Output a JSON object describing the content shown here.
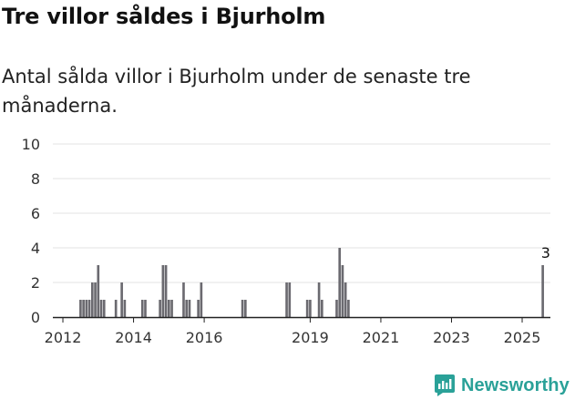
{
  "title": "Tre villor såldes i Bjurholm",
  "subtitle": "Antal sålda villor i Bjurholm under de senaste tre månaderna.",
  "brand": {
    "name": "Newsworthy",
    "color": "#2aa198"
  },
  "colors": {
    "bar": "#6b6a70",
    "highlight": "#2aa198",
    "grid": "#e3e3e3",
    "axis": "#222222"
  },
  "chart_data": {
    "type": "bar",
    "title": "Tre villor såldes i Bjurholm",
    "xlabel": "",
    "ylabel": "",
    "ylim": [
      0,
      10
    ],
    "y_ticks": [
      0,
      2,
      4,
      6,
      8,
      10
    ],
    "x_ticks": [
      "2012",
      "2014",
      "2016",
      "2019",
      "2021",
      "2023",
      "2025"
    ],
    "x_tick_months": [
      2,
      26,
      50,
      86,
      110,
      134,
      158
    ],
    "start": "2011-10",
    "end": "2025-08",
    "grain": "month",
    "annotation": {
      "label": "3",
      "month": 166,
      "value": 3
    },
    "values": [
      0,
      0,
      0,
      0,
      0,
      0,
      0,
      0,
      1,
      1,
      1,
      1,
      2,
      2,
      3,
      1,
      1,
      0,
      0,
      0,
      1,
      0,
      2,
      1,
      0,
      0,
      0,
      0,
      0,
      1,
      1,
      0,
      0,
      0,
      0,
      1,
      3,
      3,
      1,
      1,
      0,
      0,
      0,
      2,
      1,
      1,
      0,
      0,
      1,
      2,
      0,
      0,
      0,
      0,
      0,
      0,
      0,
      0,
      0,
      0,
      0,
      0,
      0,
      1,
      1,
      0,
      0,
      0,
      0,
      0,
      0,
      0,
      0,
      0,
      0,
      0,
      0,
      0,
      2,
      2,
      0,
      0,
      0,
      0,
      0,
      1,
      1,
      0,
      0,
      2,
      1,
      0,
      0,
      0,
      0,
      1,
      4,
      3,
      2,
      1,
      0,
      0,
      0,
      0,
      0,
      0,
      0,
      0,
      0,
      0,
      0,
      0,
      0,
      0,
      0,
      0,
      0,
      0,
      0,
      0,
      0,
      0,
      0,
      0,
      0,
      0,
      0,
      0,
      0,
      0,
      0,
      0,
      0,
      0,
      0,
      0,
      0,
      0,
      0,
      0,
      0,
      0,
      0,
      0,
      0,
      0,
      0,
      0,
      0,
      0,
      0,
      0,
      0,
      0,
      0,
      0,
      0,
      0,
      0,
      0,
      0,
      0,
      0,
      0,
      0,
      3,
      0
    ]
  }
}
